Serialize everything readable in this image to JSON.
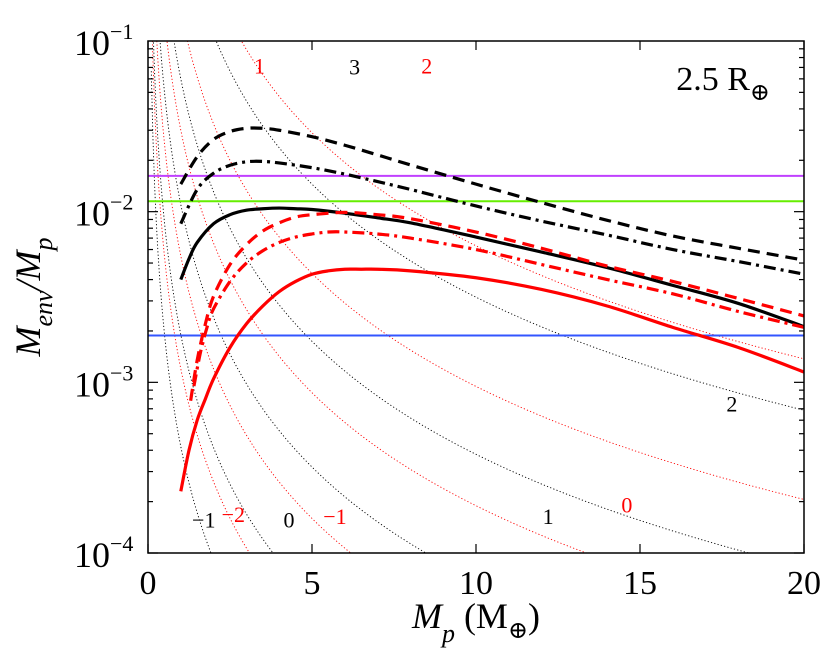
{
  "chart_data": {
    "type": "line",
    "title": "",
    "annotation": {
      "text": "2.5 R",
      "sub": "⊕"
    },
    "xlabel": {
      "main": "M",
      "sub": "p",
      "unit_open": " (M",
      "unit_sub": "⊕",
      "unit_close": ")"
    },
    "ylabel": {
      "m1": "M",
      "s1": "env",
      "slash": "/M",
      "s2": "p"
    },
    "xlim": [
      0,
      20
    ],
    "ylim_log10": [
      -4,
      -1
    ],
    "x_ticks": [
      0,
      5,
      10,
      15,
      20
    ],
    "x_tick_labels": [
      "0",
      "5",
      "10",
      "15",
      "20"
    ],
    "y_ticks": [
      {
        "base": "10",
        "exp": "-1",
        "value": 0.1
      },
      {
        "base": "10",
        "exp": "-2",
        "value": 0.01
      },
      {
        "base": "10",
        "exp": "-3",
        "value": 0.001
      },
      {
        "base": "10",
        "exp": "-4",
        "value": 0.0001
      }
    ],
    "hlines": [
      {
        "name": "purple-line",
        "y": 0.0162,
        "color": "#c040ff"
      },
      {
        "name": "green-line",
        "y": 0.0115,
        "color": "#66ee00"
      },
      {
        "name": "blue-line",
        "y": 0.00188,
        "color": "#3355ff"
      }
    ],
    "series": [
      {
        "name": "black-dashed",
        "color": "#000000",
        "style": "dashed",
        "x": [
          1.0,
          1.5,
          2.0,
          2.5,
          3.0,
          3.5,
          4.0,
          5.0,
          6.0,
          7.0,
          8.0,
          10.0,
          12.0,
          14.0,
          16.0,
          18.0,
          20.0
        ],
        "y": [
          0.0145,
          0.021,
          0.0265,
          0.0295,
          0.0308,
          0.0308,
          0.03,
          0.0275,
          0.0245,
          0.0215,
          0.0188,
          0.0145,
          0.0113,
          0.0089,
          0.0072,
          0.0061,
          0.0052
        ]
      },
      {
        "name": "black-dashdot",
        "color": "#000000",
        "style": "dashdot",
        "x": [
          1.0,
          1.5,
          2.0,
          2.5,
          3.0,
          3.5,
          4.0,
          5.0,
          6.0,
          7.0,
          8.0,
          10.0,
          12.0,
          14.0,
          16.0,
          18.0,
          20.0
        ],
        "y": [
          0.0085,
          0.0135,
          0.0168,
          0.0187,
          0.0196,
          0.0197,
          0.0193,
          0.0181,
          0.0166,
          0.015,
          0.0135,
          0.0108,
          0.0088,
          0.0073,
          0.006,
          0.0051,
          0.0043
        ]
      },
      {
        "name": "black-solid",
        "color": "#000000",
        "style": "solid",
        "x": [
          1.0,
          1.25,
          1.5,
          2.0,
          2.5,
          3.0,
          3.5,
          4.0,
          4.5,
          5.0,
          6.0,
          7.0,
          8.0,
          10.0,
          12.0,
          14.0,
          16.0,
          18.0,
          20.0
        ],
        "y": [
          0.004,
          0.0053,
          0.0066,
          0.0085,
          0.0096,
          0.0102,
          0.0104,
          0.0105,
          0.0104,
          0.0103,
          0.0098,
          0.0092,
          0.0086,
          0.0071,
          0.0058,
          0.0047,
          0.0037,
          0.0029,
          0.00212
        ]
      },
      {
        "name": "red-dashed",
        "color": "#ff0000",
        "style": "dashed",
        "x": [
          1.3,
          1.5,
          1.75,
          2.0,
          2.5,
          3.0,
          3.5,
          4.0,
          4.5,
          5.0,
          6.0,
          7.0,
          8.0,
          10.0,
          12.0,
          14.0,
          16.0,
          18.0,
          20.0
        ],
        "y": [
          0.00078,
          0.00135,
          0.0022,
          0.0032,
          0.0049,
          0.0064,
          0.0077,
          0.0086,
          0.0093,
          0.0096,
          0.0099,
          0.0096,
          0.0091,
          0.0076,
          0.0061,
          0.0048,
          0.0039,
          0.0031,
          0.00245
        ]
      },
      {
        "name": "red-dashdot",
        "color": "#ff0000",
        "style": "dashdot",
        "x": [
          1.4,
          1.6,
          1.8,
          2.0,
          2.5,
          3.0,
          3.5,
          4.0,
          4.5,
          5.0,
          5.5,
          6.0,
          7.0,
          8.0,
          10.0,
          12.0,
          14.0,
          16.0,
          18.0,
          20.0
        ],
        "y": [
          0.00095,
          0.0015,
          0.0021,
          0.0027,
          0.0039,
          0.005,
          0.0059,
          0.0066,
          0.0071,
          0.0074,
          0.0076,
          0.0076,
          0.0074,
          0.007,
          0.006,
          0.0049,
          0.004,
          0.0033,
          0.0026,
          0.0021
        ]
      },
      {
        "name": "red-solid",
        "color": "#ff0000",
        "style": "solid",
        "x": [
          1.0,
          1.25,
          1.5,
          1.75,
          2.0,
          2.5,
          3.0,
          3.5,
          4.0,
          4.5,
          5.0,
          5.5,
          6.0,
          6.5,
          7.0,
          8.0,
          10.0,
          12.0,
          14.0,
          16.0,
          18.0,
          20.0
        ],
        "y": [
          0.00023,
          0.0004,
          0.0006,
          0.0008,
          0.00105,
          0.0016,
          0.0022,
          0.0028,
          0.0034,
          0.0039,
          0.0043,
          0.0045,
          0.0046,
          0.0046,
          0.0046,
          0.0045,
          0.0041,
          0.0035,
          0.0028,
          0.0021,
          0.0016,
          0.00115
        ]
      }
    ],
    "contours": [
      {
        "label": "3",
        "color": "#000000",
        "k": 0.5
      },
      {
        "label": "2",
        "color": "#000000",
        "k": 0.06
      },
      {
        "label": "1",
        "color": "#000000",
        "k": 0.011
      },
      {
        "label": "0",
        "color": "#000000",
        "k": 0.0019
      },
      {
        "label": "-1",
        "color": "#000000",
        "k": 0.00042
      },
      {
        "label": "2",
        "color": "#ff0000",
        "k": 1.0
      },
      {
        "label": "1",
        "color": "#ff0000",
        "k": 0.15
      },
      {
        "label": "0",
        "color": "#ff0000",
        "k": 0.03
      },
      {
        "label": "-1",
        "color": "#ff0000",
        "k": 0.0055
      },
      {
        "label": "-2",
        "color": "#ff0000",
        "k": 0.0012
      }
    ],
    "contour_labels": [
      {
        "text": "3",
        "color": "#000000",
        "x": 6.3,
        "y": 0.068
      },
      {
        "text": "2",
        "color": "#000000",
        "x": 17.8,
        "y": 0.00072
      },
      {
        "text": "1",
        "color": "#000000",
        "x": 12.2,
        "y": 0.000158
      },
      {
        "text": "0",
        "color": "#000000",
        "x": 4.3,
        "y": 0.000151
      },
      {
        "text": "−1",
        "color": "#000000",
        "x": 1.7,
        "y": 0.000151
      },
      {
        "text": "2",
        "color": "#ff0000",
        "x": 8.5,
        "y": 0.069
      },
      {
        "text": "1",
        "color": "#ff0000",
        "x": 3.4,
        "y": 0.069
      },
      {
        "text": "0",
        "color": "#ff0000",
        "x": 14.6,
        "y": 0.000185
      },
      {
        "text": "−1",
        "color": "#ff0000",
        "x": 5.7,
        "y": 0.000158
      },
      {
        "text": "−2",
        "color": "#ff0000",
        "x": 2.6,
        "y": 0.000163
      }
    ]
  }
}
